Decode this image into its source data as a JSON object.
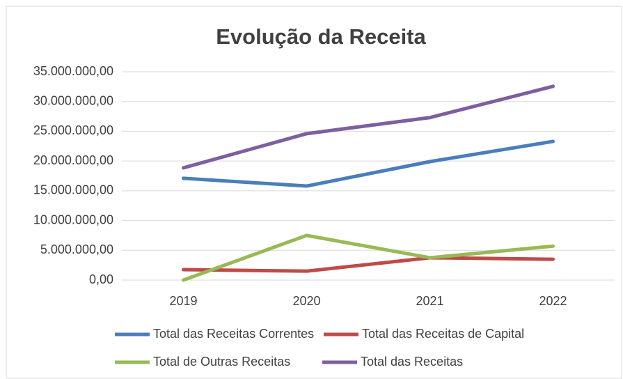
{
  "chart_data": {
    "type": "line",
    "title": "Evolução da Receita",
    "categories": [
      "2019",
      "2020",
      "2021",
      "2022"
    ],
    "series": [
      {
        "name": "Total das Receitas Correntes",
        "color": "#4a7ebb",
        "values": [
          17100000,
          15800000,
          19900000,
          23300000
        ]
      },
      {
        "name": "Total das Receitas de Capital",
        "color": "#be4b48",
        "values": [
          1750000,
          1500000,
          3750000,
          3500000
        ]
      },
      {
        "name": "Total de Outras Receitas",
        "color": "#98b954",
        "values": [
          0,
          7500000,
          3750000,
          5700000
        ]
      },
      {
        "name": "Total das Receitas",
        "color": "#7d5fa0",
        "values": [
          18850000,
          24600000,
          27300000,
          32550000
        ]
      }
    ],
    "ylim": [
      0,
      35000000
    ],
    "yticks": [
      {
        "value": 0,
        "label": "0,00"
      },
      {
        "value": 5000000,
        "label": "5.000.000,00"
      },
      {
        "value": 10000000,
        "label": "10.000.000,00"
      },
      {
        "value": 15000000,
        "label": "15.000.000,00"
      },
      {
        "value": 20000000,
        "label": "20.000.000,00"
      },
      {
        "value": 25000000,
        "label": "25.000.000,00"
      },
      {
        "value": 30000000,
        "label": "30.000.000,00"
      },
      {
        "value": 35000000,
        "label": "35.000.000,00"
      }
    ],
    "grid": true,
    "legend": "bottom"
  }
}
